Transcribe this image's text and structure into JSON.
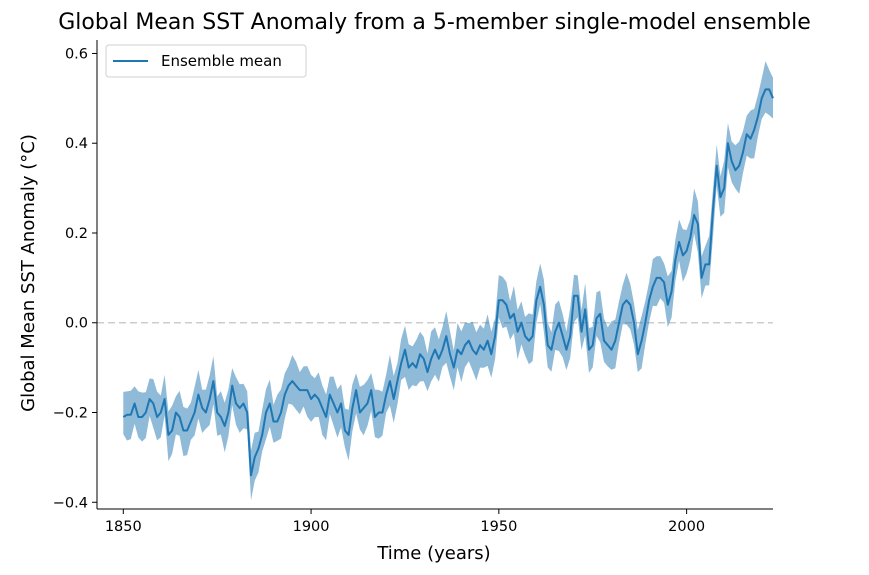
{
  "chart_data": {
    "type": "line",
    "title": "Global Mean SST Anomaly from a 5-member single-model ensemble",
    "xlabel": "Time (years)",
    "ylabel": "Global Mean SST Anomaly (°C)",
    "xlim": [
      1843,
      2023
    ],
    "ylim": [
      -0.415,
      0.63
    ],
    "xticks": [
      1850,
      1900,
      1950,
      2000
    ],
    "xtick_labels": [
      "1850",
      "1900",
      "1950",
      "2000"
    ],
    "yticks": [
      -0.4,
      -0.2,
      0.0,
      0.2,
      0.4,
      0.6
    ],
    "ytick_labels": [
      "−0.4",
      "−0.2",
      "0.0",
      "0.2",
      "0.4",
      "0.6"
    ],
    "grid": false,
    "legend_position": "top-left",
    "reference_line": {
      "y": 0.0,
      "style": "dashed",
      "color": "#cccccc"
    },
    "series": [
      {
        "name": "Ensemble mean",
        "color": "#1f77b4",
        "band_color": "#1f77b4",
        "band_opacity": 0.5,
        "x_start": 1850,
        "x_step": 1,
        "mean": [
          -0.21,
          -0.205,
          -0.205,
          -0.18,
          -0.21,
          -0.21,
          -0.2,
          -0.17,
          -0.18,
          -0.21,
          -0.2,
          -0.17,
          -0.25,
          -0.24,
          -0.2,
          -0.21,
          -0.24,
          -0.24,
          -0.22,
          -0.2,
          -0.16,
          -0.19,
          -0.2,
          -0.17,
          -0.13,
          -0.2,
          -0.21,
          -0.23,
          -0.2,
          -0.14,
          -0.18,
          -0.19,
          -0.18,
          -0.2,
          -0.34,
          -0.3,
          -0.28,
          -0.25,
          -0.2,
          -0.18,
          -0.22,
          -0.22,
          -0.2,
          -0.16,
          -0.14,
          -0.13,
          -0.14,
          -0.15,
          -0.15,
          -0.15,
          -0.17,
          -0.16,
          -0.17,
          -0.19,
          -0.21,
          -0.16,
          -0.18,
          -0.2,
          -0.18,
          -0.24,
          -0.25,
          -0.19,
          -0.15,
          -0.2,
          -0.19,
          -0.18,
          -0.15,
          -0.21,
          -0.2,
          -0.2,
          -0.16,
          -0.13,
          -0.17,
          -0.13,
          -0.09,
          -0.06,
          -0.1,
          -0.09,
          -0.1,
          -0.07,
          -0.08,
          -0.11,
          -0.08,
          -0.06,
          -0.08,
          -0.06,
          -0.03,
          -0.07,
          -0.1,
          -0.06,
          -0.07,
          -0.05,
          -0.04,
          -0.06,
          -0.07,
          -0.05,
          -0.06,
          -0.04,
          -0.07,
          -0.03,
          0.05,
          0.05,
          0.04,
          0.01,
          0.02,
          -0.02,
          0.0,
          -0.03,
          -0.04,
          -0.03,
          0.05,
          0.08,
          0.04,
          -0.05,
          -0.06,
          -0.02,
          0.0,
          -0.03,
          -0.06,
          -0.03,
          0.06,
          0.06,
          -0.02,
          0.03,
          -0.06,
          -0.05,
          0.01,
          0.02,
          -0.04,
          -0.05,
          -0.06,
          -0.04,
          0.0,
          0.04,
          0.05,
          0.04,
          0.0,
          -0.07,
          -0.04,
          0.0,
          0.05,
          0.08,
          0.1,
          0.1,
          0.09,
          0.04,
          0.07,
          0.14,
          0.18,
          0.15,
          0.16,
          0.19,
          0.24,
          0.22,
          0.1,
          0.13,
          0.13,
          0.25,
          0.35,
          0.28,
          0.3,
          0.4,
          0.36,
          0.34,
          0.35,
          0.38,
          0.42,
          0.41,
          0.43,
          0.46,
          0.5,
          0.52,
          0.52,
          0.5
        ],
        "spread": 0.05
      }
    ]
  }
}
